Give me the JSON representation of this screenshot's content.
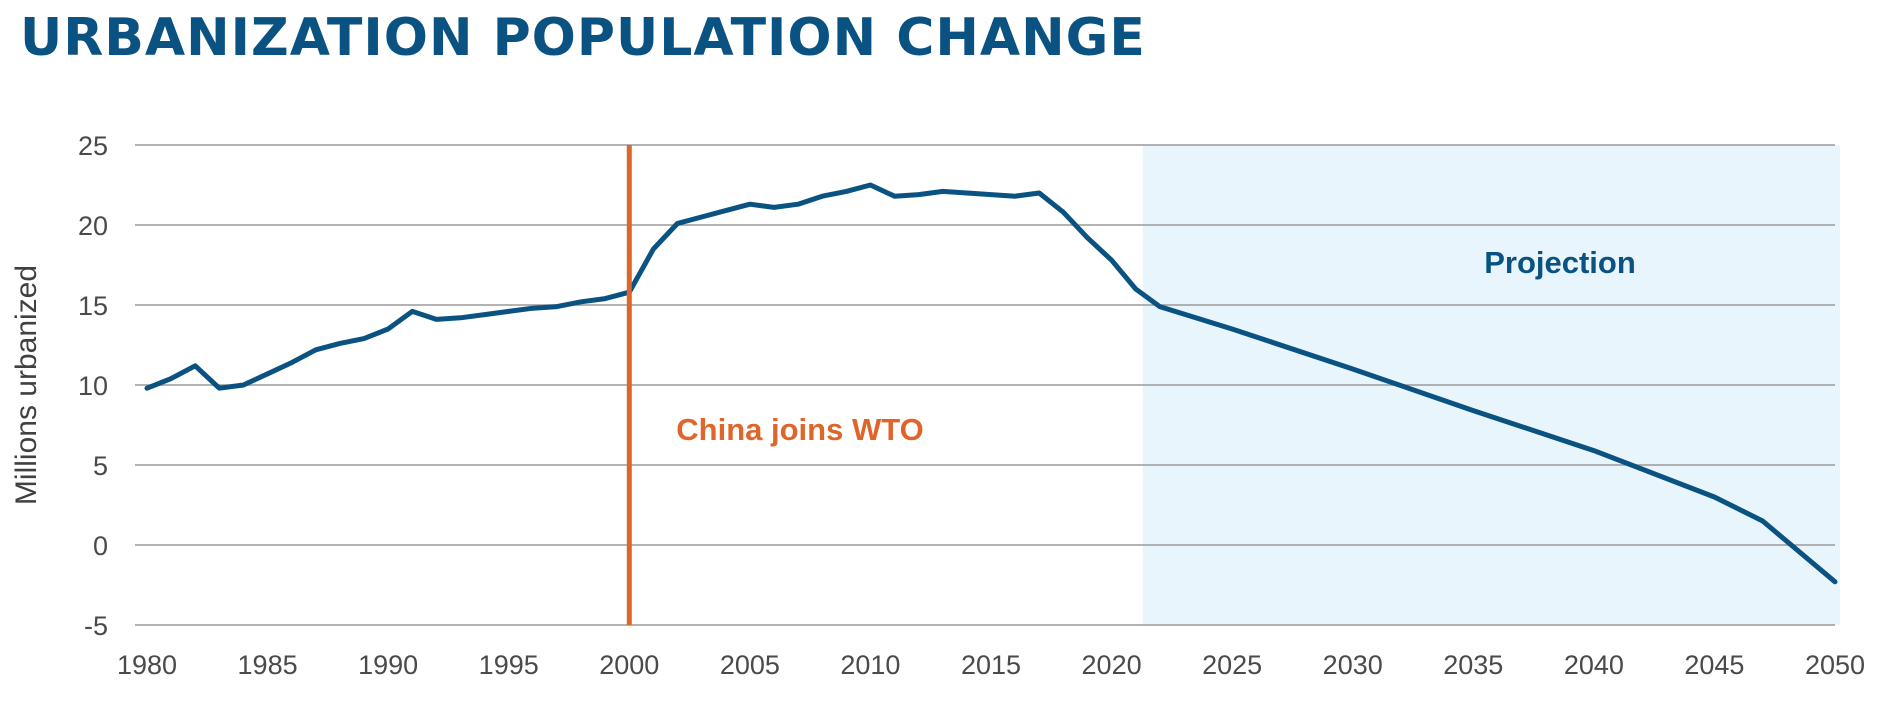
{
  "title": "URBANIZATION POPULATION CHANGE",
  "colors": {
    "title": "#0a5282",
    "line": "#0a5282",
    "event_line": "#e0652a",
    "projection_shade": "#e8f5fc",
    "grid": "#9a9a9a"
  },
  "chart_data": {
    "type": "line",
    "title": "URBANIZATION POPULATION CHANGE",
    "xlabel": "",
    "ylabel": "Millions urbanized",
    "xlim": [
      1980,
      2050
    ],
    "ylim": [
      -5,
      25
    ],
    "x_ticks": [
      1980,
      1985,
      1990,
      1995,
      2000,
      2005,
      2010,
      2015,
      2020,
      2025,
      2030,
      2035,
      2040,
      2045,
      2050
    ],
    "y_ticks": [
      25,
      20,
      15,
      10,
      5,
      0,
      -5
    ],
    "grid": "horizontal",
    "series": [
      {
        "x": [
          1980,
          1981,
          1982,
          1983,
          1984,
          1985,
          1986,
          1987,
          1988,
          1989,
          1990,
          1991,
          1992,
          1993,
          1994,
          1995,
          1996,
          1997,
          1998,
          1999,
          2000,
          2001,
          2002,
          2003,
          2004,
          2005,
          2006,
          2007,
          2008,
          2009,
          2010,
          2011,
          2012,
          2013,
          2014,
          2015,
          2016,
          2017,
          2018,
          2019,
          2020,
          2021,
          2022,
          2025,
          2030,
          2035,
          2040,
          2045,
          2047,
          2050
        ],
        "y": [
          9.8,
          10.4,
          11.2,
          9.8,
          10.0,
          10.7,
          11.4,
          12.2,
          12.6,
          12.9,
          13.5,
          14.6,
          14.1,
          14.2,
          14.4,
          14.6,
          14.8,
          14.9,
          15.2,
          15.4,
          15.8,
          18.5,
          20.1,
          20.5,
          20.9,
          21.3,
          21.1,
          21.3,
          21.8,
          22.1,
          22.5,
          21.8,
          21.9,
          22.1,
          22.0,
          21.9,
          21.8,
          22.0,
          20.8,
          19.2,
          17.8,
          16.0,
          14.9,
          13.5,
          11.0,
          8.4,
          5.9,
          3.0,
          1.5,
          -2.3
        ]
      }
    ],
    "annotations": [
      {
        "type": "vertical_line",
        "x": 2000,
        "label": "China joins WTO"
      },
      {
        "type": "shaded_region",
        "x_start": 2021.3,
        "x_end": 2050.3,
        "label": "Projection"
      }
    ]
  }
}
